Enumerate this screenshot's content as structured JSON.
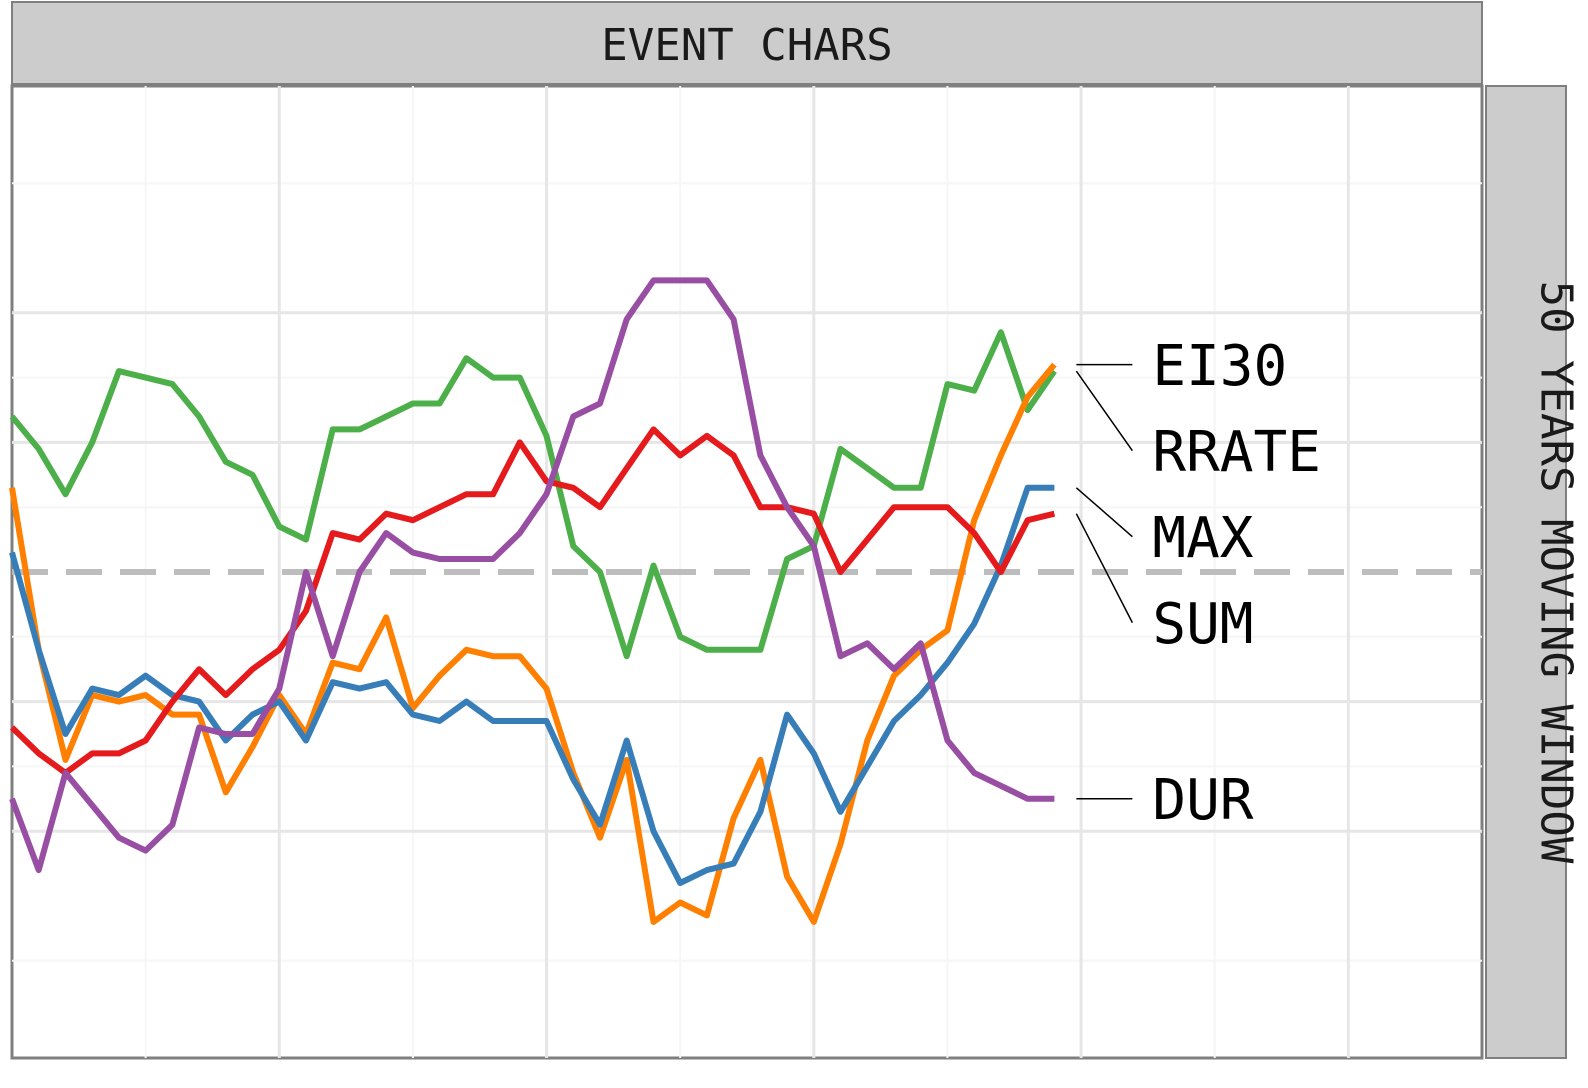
{
  "chart_data": {
    "type": "line",
    "facet_top": "EVENT CHARS",
    "facet_right": "50 YEARS MOVING WINDOW",
    "grid": true,
    "axis_ticks_visible": false,
    "x_range": [
      0,
      55
    ],
    "y_range": [
      -0.75,
      0.75
    ],
    "x": [
      0,
      1,
      2,
      3,
      4,
      5,
      6,
      7,
      8,
      9,
      10,
      11,
      12,
      13,
      14,
      15,
      16,
      17,
      18,
      19,
      20,
      21,
      22,
      23,
      24,
      25,
      26,
      27,
      28,
      29,
      30,
      31,
      32,
      33,
      34,
      35,
      36,
      37,
      38,
      39
    ],
    "reference_line": {
      "y": 0,
      "style": "dashed",
      "color": "#bdbdbd"
    },
    "series": [
      {
        "name": "RRATE",
        "color": "#4daf4a",
        "values": [
          0.24,
          0.19,
          0.12,
          0.2,
          0.31,
          0.3,
          0.29,
          0.24,
          0.17,
          0.15,
          0.07,
          0.05,
          0.22,
          0.22,
          0.24,
          0.26,
          0.26,
          0.33,
          0.3,
          0.3,
          0.21,
          0.04,
          0,
          -0.13,
          0.01,
          -0.1,
          -0.12,
          -0.12,
          -0.12,
          0.02,
          0.04,
          0.19,
          0.16,
          0.13,
          0.13,
          0.29,
          0.28,
          0.37,
          0.25,
          0.31
        ]
      },
      {
        "name": "EI30",
        "color": "#ff7f00",
        "values": [
          0.13,
          -0.12,
          -0.29,
          -0.19,
          -0.2,
          -0.19,
          -0.22,
          -0.22,
          -0.34,
          -0.27,
          -0.19,
          -0.25,
          -0.14,
          -0.15,
          -0.07,
          -0.21,
          -0.16,
          -0.12,
          -0.13,
          -0.13,
          -0.18,
          -0.31,
          -0.41,
          -0.29,
          -0.54,
          -0.51,
          -0.53,
          -0.38,
          -0.29,
          -0.47,
          -0.54,
          -0.42,
          -0.26,
          -0.16,
          -0.12,
          -0.09,
          0.08,
          0.18,
          0.27,
          0.32
        ]
      },
      {
        "name": "MAX",
        "color": "#377eb8",
        "values": [
          0.03,
          -0.12,
          -0.25,
          -0.18,
          -0.19,
          -0.16,
          -0.19,
          -0.2,
          -0.26,
          -0.22,
          -0.2,
          -0.26,
          -0.17,
          -0.18,
          -0.17,
          -0.22,
          -0.23,
          -0.2,
          -0.23,
          -0.23,
          -0.23,
          -0.32,
          -0.39,
          -0.26,
          -0.4,
          -0.48,
          -0.46,
          -0.45,
          -0.37,
          -0.22,
          -0.28,
          -0.37,
          -0.3,
          -0.23,
          -0.19,
          -0.14,
          -0.08,
          0.01,
          0.13,
          0.13
        ]
      },
      {
        "name": "SUM",
        "color": "#e41a1c",
        "values": [
          -0.24,
          -0.28,
          -0.31,
          -0.28,
          -0.28,
          -0.26,
          -0.2,
          -0.15,
          -0.19,
          -0.15,
          -0.12,
          -0.06,
          0.06,
          0.05,
          0.09,
          0.08,
          0.1,
          0.12,
          0.12,
          0.2,
          0.14,
          0.13,
          0.1,
          0.16,
          0.22,
          0.18,
          0.21,
          0.18,
          0.1,
          0.1,
          0.09,
          0,
          0.05,
          0.1,
          0.1,
          0.1,
          0.06,
          0,
          0.08,
          0.09
        ]
      },
      {
        "name": "DUR",
        "color": "#984ea3",
        "values": [
          -0.35,
          -0.46,
          -0.31,
          -0.36,
          -0.41,
          -0.43,
          -0.39,
          -0.24,
          -0.25,
          -0.25,
          -0.18,
          0,
          -0.13,
          0,
          0.06,
          0.03,
          0.02,
          0.02,
          0.02,
          0.06,
          0.12,
          0.24,
          0.26,
          0.39,
          0.45,
          0.45,
          0.45,
          0.39,
          0.18,
          0.1,
          0.04,
          -0.13,
          -0.11,
          -0.15,
          -0.11,
          -0.26,
          -0.31,
          -0.33,
          -0.35,
          -0.35
        ]
      }
    ],
    "left_labels": [
      "RRATE",
      "EI30",
      "MAX",
      "SUM",
      "DUR"
    ],
    "right_labels": [
      "EI30",
      "RRATE",
      "MAX",
      "SUM",
      "DUR"
    ]
  }
}
